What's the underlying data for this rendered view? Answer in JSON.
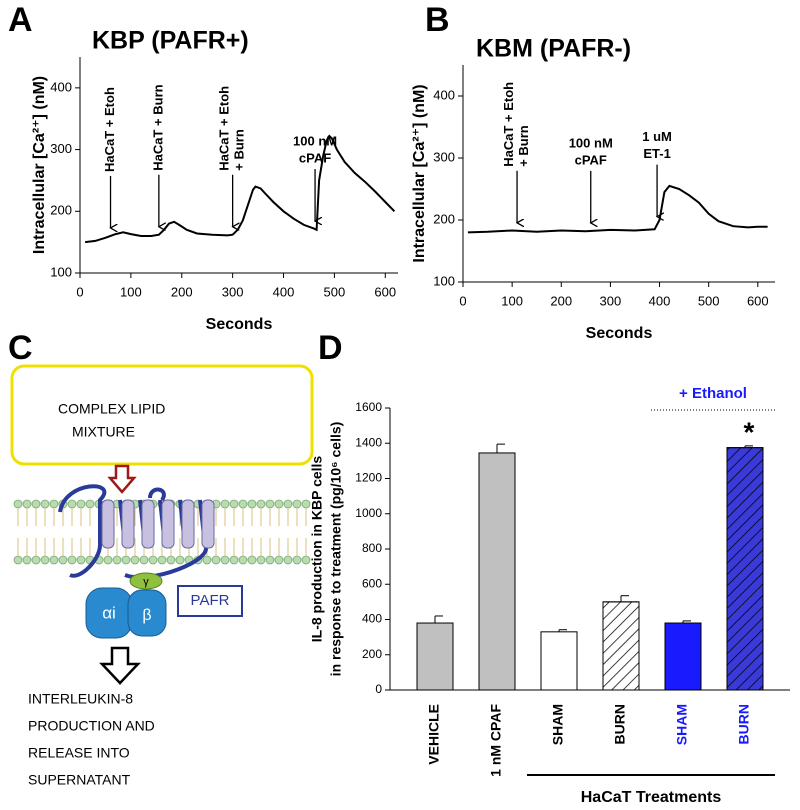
{
  "chart_data": [
    {
      "type": "line",
      "panel": "A",
      "title": "KBP (PAFR+)",
      "x_label": "Seconds",
      "y_label": "Intracellular [Ca²⁺] (nM)",
      "xlim": [
        0,
        625
      ],
      "xticks": [
        0,
        100,
        200,
        300,
        400,
        500,
        600
      ],
      "ylim": [
        100,
        450
      ],
      "yticks": [
        100,
        200,
        300,
        400
      ],
      "series": [
        {
          "color": "#000000",
          "x": [
            10,
            30,
            50,
            70,
            85,
            100,
            120,
            140,
            155,
            165,
            175,
            185,
            195,
            210,
            230,
            260,
            290,
            300,
            310,
            320,
            330,
            340,
            345,
            355,
            365,
            380,
            400,
            420,
            440,
            460,
            465,
            470,
            478,
            485,
            490,
            495,
            505,
            520,
            540,
            560,
            580,
            600,
            618
          ],
          "values": [
            150,
            152,
            157,
            163,
            166,
            163,
            160,
            160,
            162,
            170,
            180,
            183,
            178,
            170,
            164,
            162,
            161,
            162,
            170,
            185,
            210,
            235,
            240,
            237,
            228,
            215,
            200,
            188,
            178,
            172,
            170,
            250,
            290,
            315,
            322,
            318,
            300,
            280,
            262,
            248,
            232,
            215,
            200
          ]
        }
      ],
      "annotations": [
        {
          "lines": [
            "HaCaT + Etoh"
          ],
          "x": 60,
          "rotated": true
        },
        {
          "lines": [
            "HaCaT + Burn"
          ],
          "x": 155,
          "rotated": true
        },
        {
          "lines": [
            "HaCaT + Etoh",
            "+ Burn"
          ],
          "x": 300,
          "rotated": true
        },
        {
          "lines": [
            "100 nM",
            "cPAF"
          ],
          "x": 462,
          "rotated": false
        }
      ]
    },
    {
      "type": "line",
      "panel": "B",
      "title": "KBM (PAFR-)",
      "x_label": "Seconds",
      "y_label": "Intracellular [Ca²⁺] (nM)",
      "xlim": [
        0,
        635
      ],
      "xticks": [
        0,
        100,
        200,
        300,
        400,
        500,
        600
      ],
      "ylim": [
        100,
        450
      ],
      "yticks": [
        100,
        200,
        300,
        400
      ],
      "series": [
        {
          "color": "#000000",
          "x": [
            10,
            50,
            100,
            150,
            200,
            250,
            300,
            350,
            390,
            400,
            410,
            420,
            440,
            460,
            480,
            500,
            520,
            550,
            580,
            600,
            620
          ],
          "values": [
            180,
            181,
            183,
            181,
            183,
            182,
            184,
            183,
            185,
            200,
            245,
            255,
            250,
            240,
            228,
            210,
            198,
            190,
            188,
            189,
            189
          ]
        }
      ],
      "annotations": [
        {
          "lines": [
            "HaCaT + Etoh",
            "+ Burn"
          ],
          "x": 110,
          "rotated": true
        },
        {
          "lines": [
            "100 nM",
            "cPAF"
          ],
          "x": 260,
          "rotated": false
        },
        {
          "lines": [
            "1 uM",
            "ET-1"
          ],
          "x": 395,
          "rotated": false
        }
      ]
    },
    {
      "type": "bar",
      "panel": "D",
      "y_label": [
        "IL-8 production in KBP cells",
        "in response to treatment (pg/10⁶ cells)"
      ],
      "categories": [
        "VEHICLE",
        "1 nM CPAF",
        "SHAM",
        "BURN",
        "SHAM",
        "BURN"
      ],
      "values": [
        380,
        1345,
        330,
        500,
        380,
        1375
      ],
      "errors": [
        40,
        50,
        12,
        35,
        12,
        10
      ],
      "colors": [
        "#c0c0c0",
        "#c0c0c0",
        "#ffffff",
        "#ffffff",
        "#1a1aff",
        "#3a3ad8"
      ],
      "hatched": [
        false,
        false,
        false,
        true,
        false,
        true
      ],
      "label_colors": [
        "#000000",
        "#000000",
        "#000000",
        "#000000",
        "#1a1aff",
        "#1a1aff"
      ],
      "significant": [
        false,
        false,
        false,
        false,
        false,
        true
      ],
      "significance_mark": "*",
      "groups": [
        {
          "label": "+ Ethanol",
          "start": 4,
          "end": 5,
          "color": "#1a1aff",
          "position": "top"
        },
        {
          "label": "HaCaT Treatments",
          "start": 2,
          "end": 5,
          "color": "#000000",
          "position": "bottom"
        }
      ],
      "ylim": [
        0,
        1600
      ],
      "yticks": [
        0,
        200,
        400,
        600,
        800,
        1000,
        1200,
        1400,
        1600
      ]
    }
  ],
  "diagram": {
    "panel": "C",
    "input_lines": [
      "COMPLEX LIPID",
      "MIXTURE"
    ],
    "subunits": [
      "αi",
      "γ",
      "β"
    ],
    "receptor": "PAFR",
    "output_lines": [
      "INTERLEUKIN-8",
      "PRODUCTION AND",
      "RELEASE INTO",
      "SUPERNATANT"
    ]
  }
}
